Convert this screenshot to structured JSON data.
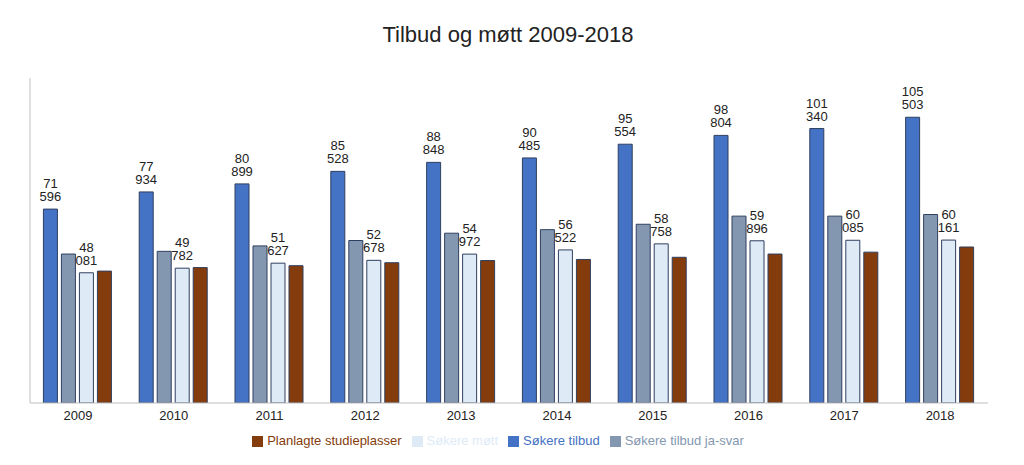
{
  "chart_data": {
    "type": "bar",
    "title": "Tilbud og møtt 2009-2018",
    "categories": [
      "2009",
      "2010",
      "2011",
      "2012",
      "2013",
      "2014",
      "2015",
      "2016",
      "2017",
      "2018"
    ],
    "ylim": [
      0,
      120000
    ],
    "grid": false,
    "legend": "bottom",
    "tick_labels": "x",
    "series": [
      {
        "name": "Søkere tilbud",
        "color": "#4472c4",
        "data_labels": true,
        "values": [
          71596,
          77934,
          80899,
          85528,
          88848,
          90485,
          95554,
          98804,
          101340,
          105503
        ],
        "value_labels": [
          "71 596",
          "77 934",
          "80 899",
          "85 528",
          "88 848",
          "90 485",
          "95 554",
          "98 804",
          "101 340",
          "105 503"
        ]
      },
      {
        "name": "Søkere tilbud ja-svar",
        "color": "#8497b0",
        "values": [
          55000,
          56000,
          58000,
          60000,
          62700,
          64000,
          66000,
          69000,
          69000,
          69600
        ]
      },
      {
        "name": "Søkere møtt",
        "color": "#deebf7",
        "data_labels": true,
        "values": [
          48081,
          49782,
          51627,
          52678,
          54972,
          56522,
          58758,
          59896,
          60085,
          60161
        ],
        "value_labels": [
          "48 081",
          "49 782",
          "51 627",
          "52 678",
          "54 972",
          "56 522",
          "58 758",
          "59 896",
          "60 085",
          "60 161"
        ]
      },
      {
        "name": "Planlagte studieplasser",
        "color": "#843c0c",
        "values": [
          48700,
          50000,
          50700,
          51800,
          52600,
          53000,
          53800,
          55000,
          55700,
          57600
        ]
      }
    ]
  }
}
